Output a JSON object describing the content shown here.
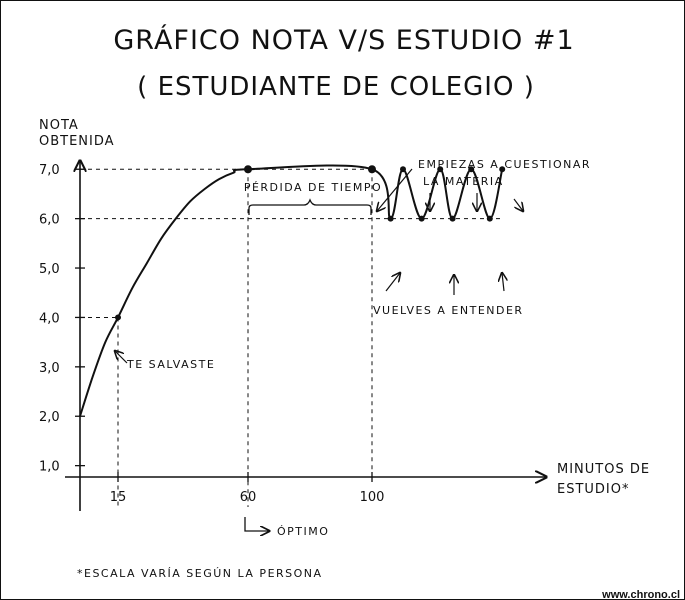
{
  "chart_data": {
    "type": "line",
    "title": "GRÁFICO NOTA V/S ESTUDIO #1",
    "subtitle": "( ESTUDIANTE DE COLEGIO )",
    "ylabel_line1": "NOTA",
    "ylabel_line2": "OBTENIDA",
    "xlabel_line1": "MINUTOS DE",
    "xlabel_line2": "ESTUDIO*",
    "y_ticks": [
      "1,0",
      "2,0",
      "3,0",
      "4,0",
      "5,0",
      "6,0",
      "7,0"
    ],
    "x_ticks": [
      "15",
      "60",
      "100"
    ],
    "ylim": [
      1,
      7.5
    ],
    "xlim": [
      0,
      145
    ],
    "series": [
      {
        "x": [
          0,
          5,
          10,
          15,
          20,
          25,
          30,
          35,
          40,
          45,
          50,
          55,
          60,
          100,
          106,
          110,
          116,
          122,
          126,
          132,
          138,
          142
        ],
        "y": [
          2.0,
          2.8,
          3.5,
          4.0,
          4.6,
          5.1,
          5.6,
          6.0,
          6.35,
          6.6,
          6.8,
          6.93,
          7.0,
          7.0,
          6.0,
          7.0,
          6.0,
          7.0,
          6.0,
          7.0,
          6.0,
          7.0
        ]
      }
    ],
    "annotations": {
      "salvaste": "TE SALVASTE",
      "perdida": "PÉRDIDA DE TIEMPO",
      "cuestionar_line1": "EMPIEZAS A CUESTIONAR",
      "cuestionar_line2": "LA MATERIA",
      "entender": "VUELVES A ENTENDER",
      "optimo": "ÓPTIMO"
    },
    "footnote": "*ESCALA VARÍA SEGÚN LA PERSONA"
  },
  "credit": "www.chrono.cl"
}
